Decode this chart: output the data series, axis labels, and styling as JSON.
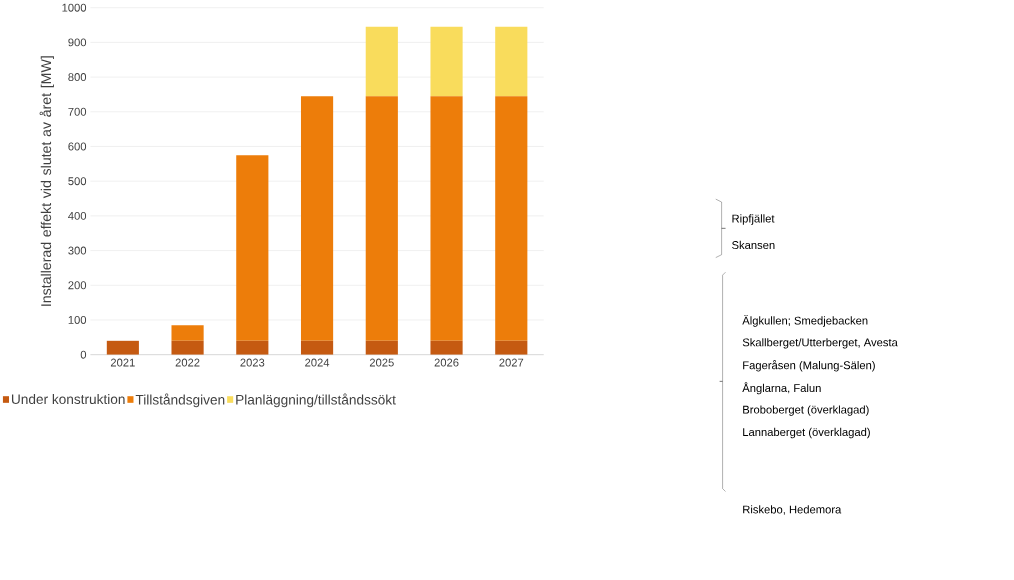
{
  "chart_data": {
    "type": "bar",
    "stacked": true,
    "ylabel": "Installerad effekt vid slutet av året [MW]",
    "categories": [
      "2021",
      "2022",
      "2023",
      "2024",
      "2025",
      "2026",
      "2027"
    ],
    "series": [
      {
        "name": "Under konstruktion",
        "color": "#c55a11",
        "values": [
          40,
          40,
          40,
          40,
          40,
          40,
          40
        ]
      },
      {
        "name": "Tillståndsgiven",
        "color": "#ed7d0a",
        "values": [
          0,
          45,
          535,
          705,
          705,
          705,
          705
        ]
      },
      {
        "name": "Planläggning/tillståndssökt",
        "color": "#f9dc5c",
        "values": [
          0,
          0,
          0,
          0,
          200,
          200,
          200
        ]
      }
    ],
    "ylim": [
      0,
      1000
    ],
    "yticks": [
      0,
      100,
      200,
      300,
      400,
      500,
      600,
      700,
      800,
      900,
      1000
    ],
    "grid": "y",
    "legend": "bottom",
    "annotations": [
      "Ripfjället",
      "Skansen",
      "Älgkullen; Smedjebacken",
      "Skallberget/Utterberget, Avesta",
      "Fageråsen (Malung-Sälen)",
      "Ånglarna, Falun",
      "Broboberget (överklagad)",
      "Lannaberget (överklagad)",
      "Riskebo, Hedemora"
    ]
  }
}
